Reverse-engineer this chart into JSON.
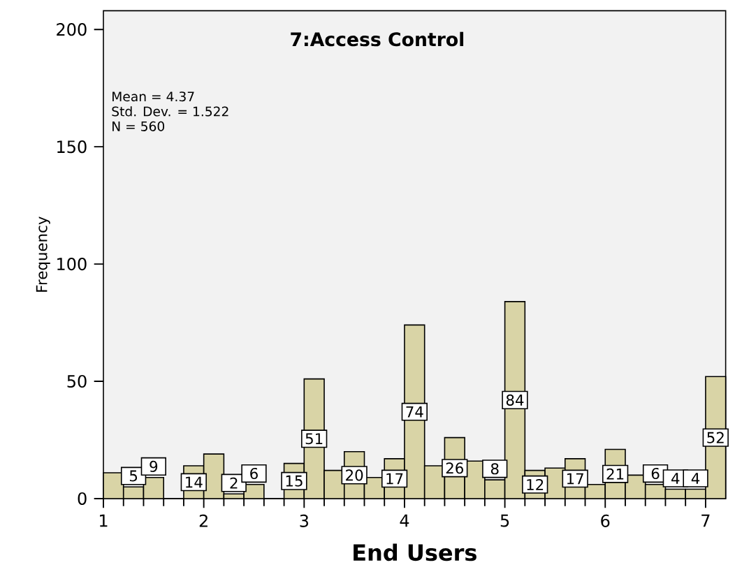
{
  "chart_data": {
    "type": "histogram",
    "title": "7:Access Control",
    "xlabel": "End Users",
    "ylabel": "Frequency",
    "annotations": [
      "Mean = 4.37",
      "Std. Dev. = 1.522",
      "N = 560"
    ],
    "bins": [
      1.0,
      1.2,
      1.4,
      1.6,
      1.8,
      2.0,
      2.2,
      2.4,
      2.6,
      2.8,
      3.0,
      3.2,
      3.4,
      3.6,
      3.8,
      4.0,
      4.2,
      4.4,
      4.6,
      4.8,
      5.0,
      5.2,
      5.4,
      5.6,
      5.8,
      6.0,
      6.2,
      6.4,
      6.6,
      6.8,
      7.0,
      7.2
    ],
    "values": [
      11,
      5,
      9,
      0,
      14,
      19,
      2,
      6,
      0,
      15,
      51,
      12,
      20,
      9,
      17,
      74,
      14,
      26,
      16,
      8,
      84,
      12,
      13,
      17,
      6,
      21,
      10,
      6,
      4,
      4,
      52
    ],
    "value_labels": [
      null,
      "5",
      "9",
      null,
      "14",
      null,
      "2",
      "6",
      null,
      "15",
      "51",
      null,
      "20",
      null,
      "17",
      "74",
      null,
      "26",
      null,
      "8",
      "84",
      "12",
      null,
      "17",
      null,
      "21",
      null,
      "6",
      "4",
      "4",
      "52"
    ],
    "color": "#d9d4a6",
    "xlim": [
      1.0,
      7.2
    ],
    "ylim": [
      0,
      208
    ],
    "xticks": [
      1,
      2,
      3,
      4,
      5,
      6,
      7
    ],
    "yticks": [
      0,
      50,
      100,
      150,
      200
    ]
  }
}
